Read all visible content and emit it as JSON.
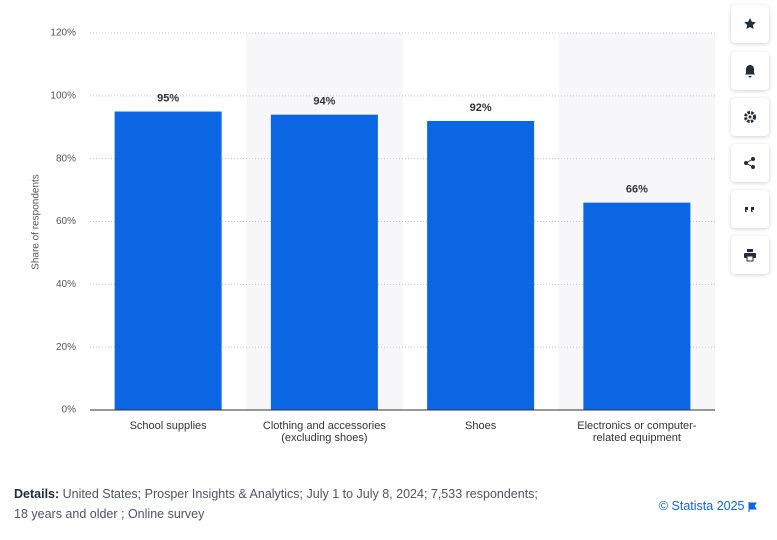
{
  "chart_data": {
    "type": "bar",
    "y_label": "Share of respondents",
    "categories": [
      "School supplies",
      "Clothing and accessories (excluding shoes)",
      "Shoes",
      "Electronics or computer-related equipment"
    ],
    "values": [
      95,
      94,
      92,
      66
    ],
    "value_labels": [
      "95%",
      "94%",
      "92%",
      "66%"
    ],
    "color": "#0b66e4",
    "ylim": [
      0,
      120
    ],
    "yticks": [
      {
        "value": 0,
        "label": "0%"
      },
      {
        "value": 20,
        "label": "20%"
      },
      {
        "value": 40,
        "label": "40%"
      },
      {
        "value": 60,
        "label": "60%"
      },
      {
        "value": 80,
        "label": "80%"
      },
      {
        "value": 100,
        "label": "100%"
      },
      {
        "value": 120,
        "label": "120%"
      }
    ],
    "grid": true
  },
  "footer": {
    "details_label": "Details:",
    "details_text": "United States; Prosper Insights & Analytics; July 1 to July 8, 2024; 7,533 respondents; 18 years and older ; Online survey",
    "copyright": "© Statista 2025"
  }
}
